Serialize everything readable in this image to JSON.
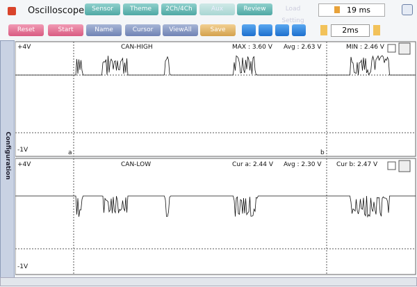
{
  "header": {
    "title": "Oscilloscope",
    "tabs": [
      "Sensor",
      "Theme",
      "2Ch/4Ch",
      "Aux",
      "Review",
      "Load Setting"
    ],
    "time": "19 ms"
  },
  "toolbar": {
    "buttons": [
      "Reset",
      "Start",
      "Name",
      "Cursor",
      "ViewAll",
      "Save"
    ],
    "timebase": "2ms"
  },
  "sidebar": {
    "label": "Configuration"
  },
  "panels": [
    {
      "top": "+4V",
      "bottom": "-1V",
      "name": "CAN-HIGH",
      "readouts": [
        "MAX : 3.60 V",
        "Avg : 2.63 V",
        "MIN : 2.46 V"
      ],
      "cursors": [
        "a",
        "b"
      ]
    },
    {
      "top": "+4V",
      "bottom": "-1V",
      "name": "CAN-LOW",
      "readouts": [
        "Cur a: 2.44 V",
        "Avg : 2.30 V",
        "Cur b: 2.47 V"
      ]
    }
  ]
}
